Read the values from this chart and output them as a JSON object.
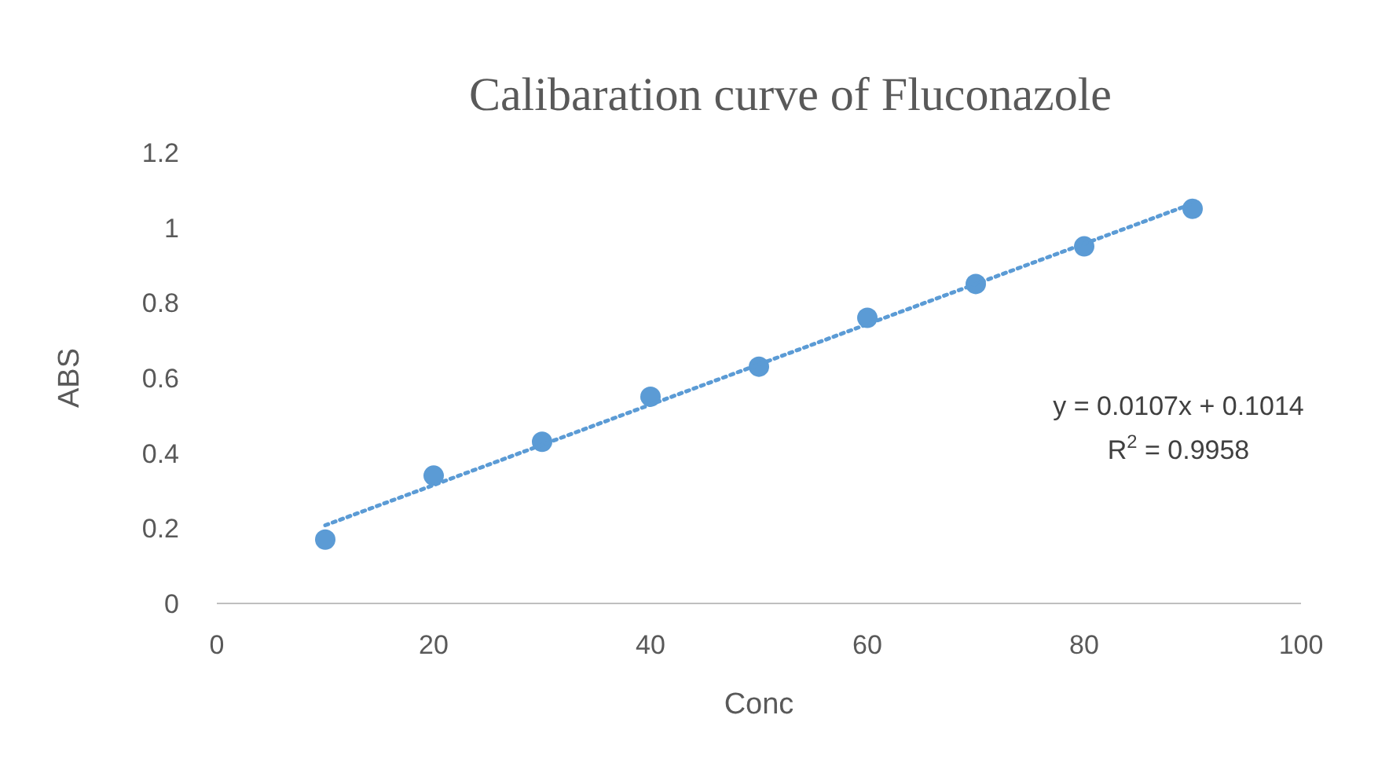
{
  "chart_data": {
    "type": "scatter",
    "title": "Calibaration  curve  of Fluconazole",
    "xlabel": "Conc",
    "ylabel": "ABS",
    "x": [
      10,
      20,
      30,
      40,
      50,
      60,
      70,
      80,
      90
    ],
    "series": [
      {
        "color": "#5b9bd5",
        "marker": "circle",
        "values": [
          0.17,
          0.34,
          0.43,
          0.55,
          0.63,
          0.76,
          0.85,
          0.95,
          1.05
        ]
      },
      {
        "type": "line",
        "color": "#5b9bd5",
        "line_style": "dotted",
        "marker": "none",
        "x": [
          10,
          90
        ],
        "values": [
          0.208,
          1.064
        ]
      }
    ],
    "xlim": [
      0,
      100
    ],
    "xticks": [
      0,
      20,
      40,
      60,
      80,
      100
    ],
    "ylim": [
      0,
      1.2
    ],
    "yticks": [
      0,
      0.2,
      0.4,
      0.6,
      0.8,
      1,
      1.2
    ],
    "annotations": [
      "y = 0.0107x + 0.1014",
      "R$^{2}$ = 0.9958"
    ],
    "grid": false
  }
}
